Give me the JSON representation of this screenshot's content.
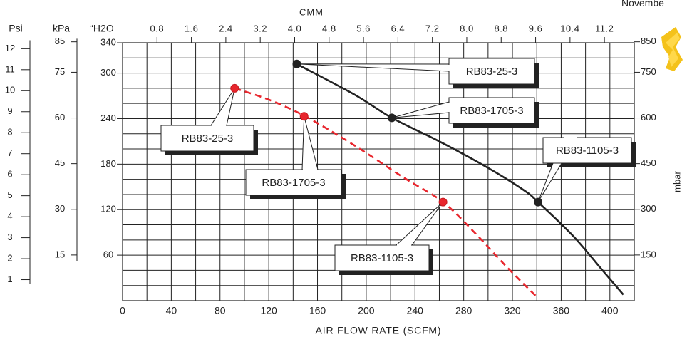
{
  "corner_text": "Novembe",
  "chart_data": {
    "type": "line",
    "xlabel": "AIR FLOW RATE (SCFM)",
    "x_ticks": [
      0,
      40,
      80,
      120,
      160,
      200,
      240,
      280,
      320,
      360,
      400
    ],
    "xlim": [
      0,
      420
    ],
    "top_axis": {
      "label": "CMM",
      "ticks": [
        "0.8",
        "1.6",
        "2.4",
        "3.2",
        "4.0",
        "4.8",
        "5.6",
        "6.4",
        "7.2",
        "8.0",
        "8.8",
        "9.6",
        "10.4",
        "11.2"
      ],
      "tick_values": [
        0.8,
        1.6,
        2.4,
        3.2,
        4.0,
        4.8,
        5.6,
        6.4,
        7.2,
        8.0,
        8.8,
        9.6,
        10.4,
        11.2
      ]
    },
    "ylim_h2o": [
      0,
      340
    ],
    "left_axes": [
      {
        "label": "Psi",
        "ticks": [
          "1",
          "2",
          "3",
          "4",
          "5",
          "6",
          "7",
          "8",
          "9",
          "10",
          "11",
          "12"
        ],
        "tick_values": [
          1,
          2,
          3,
          4,
          5,
          6,
          7,
          8,
          9,
          10,
          11,
          12
        ]
      },
      {
        "label": "kPa",
        "ticks": [
          "15",
          "30",
          "45",
          "60",
          "75",
          "85"
        ],
        "tick_values": [
          15,
          30,
          45,
          60,
          75,
          85
        ]
      },
      {
        "label": "“H2O",
        "ticks": [
          "60",
          "120",
          "180",
          "240",
          "300",
          "340"
        ],
        "tick_values": [
          60,
          120,
          180,
          240,
          300,
          340
        ]
      }
    ],
    "right_axis": {
      "label": "mbar",
      "ticks": [
        "150",
        "300",
        "450",
        "600",
        "750",
        "850"
      ],
      "tick_values": [
        150,
        300,
        450,
        600,
        750,
        850
      ]
    },
    "grid": true,
    "series": [
      {
        "style": "solid",
        "color": "#222222",
        "x": [
          143,
          190,
          221,
          260,
          300,
          330,
          341,
          370,
          395,
          411
        ],
        "y": [
          312,
          272,
          241,
          210,
          175,
          145,
          130,
          85,
          38,
          8
        ]
      },
      {
        "style": "dashed",
        "color": "#e8262d",
        "x": [
          92,
          120,
          150,
          190,
          230,
          263,
          290,
          315,
          340
        ],
        "y": [
          280,
          265,
          243,
          205,
          163,
          130,
          88,
          45,
          5
        ]
      }
    ],
    "markers": [
      {
        "series": 0,
        "x": 143,
        "y": 312,
        "color": "#222222"
      },
      {
        "series": 0,
        "x": 221,
        "y": 241,
        "color": "#222222"
      },
      {
        "series": 0,
        "x": 341,
        "y": 130,
        "color": "#222222"
      },
      {
        "series": 1,
        "x": 92,
        "y": 280,
        "color": "#e8262d"
      },
      {
        "series": 1,
        "x": 149,
        "y": 243,
        "color": "#e8262d"
      },
      {
        "series": 1,
        "x": 263,
        "y": 130,
        "color": "#e8262d"
      }
    ],
    "callouts": [
      {
        "text": "RB83-25-3",
        "marker": 0
      },
      {
        "text": "RB83-1705-3",
        "marker": 1
      },
      {
        "text": "RB83-1105-3",
        "marker": 2
      },
      {
        "text": "RB83-25-3",
        "marker": 3
      },
      {
        "text": "RB83-1705-3",
        "marker": 4
      },
      {
        "text": "RB83-1105-3",
        "marker": 5
      }
    ]
  }
}
